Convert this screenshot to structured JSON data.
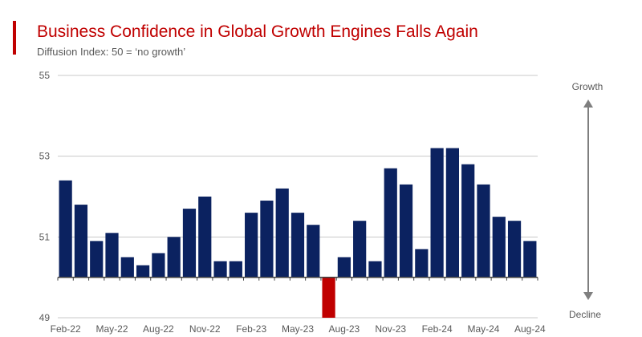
{
  "title": "Business Confidence in Global Growth Engines Falls Again",
  "subtitle": "Diffusion Index: 50 = ‘no growth’",
  "colors": {
    "accent": "#c00000",
    "bar_positive": "#0b2260",
    "bar_negative": "#c00000",
    "grid": "#c8c8c8",
    "arrow": "#7f7f7f"
  },
  "arrow_labels": {
    "up": "Growth",
    "down": "Decline"
  },
  "chart_data": {
    "type": "bar",
    "title": "Business Confidence in Global Growth Engines Falls Again",
    "subtitle": "Diffusion Index: 50 = ‘no growth’",
    "baseline": 50,
    "ylim": [
      49,
      55
    ],
    "yticks": [
      49,
      51,
      53,
      55
    ],
    "grid": true,
    "x_tick_labels": [
      "Feb-22",
      "May-22",
      "Aug-22",
      "Nov-22",
      "Feb-23",
      "May-23",
      "Aug-23",
      "Nov-23",
      "Feb-24",
      "May-24",
      "Aug-24"
    ],
    "categories": [
      "Feb-22",
      "Mar-22",
      "Apr-22",
      "May-22",
      "Jun-22",
      "Jul-22",
      "Aug-22",
      "Sep-22",
      "Oct-22",
      "Nov-22",
      "Dec-22",
      "Jan-23",
      "Feb-23",
      "Mar-23",
      "Apr-23",
      "May-23",
      "Jun-23",
      "Jul-23",
      "Aug-23",
      "Sep-23",
      "Oct-23",
      "Nov-23",
      "Dec-23",
      "Jan-24",
      "Feb-24",
      "Mar-24",
      "Apr-24",
      "May-24",
      "Jun-24",
      "Jul-24",
      "Aug-24"
    ],
    "values": [
      52.4,
      51.8,
      50.9,
      51.1,
      50.5,
      50.3,
      50.6,
      51.0,
      51.7,
      52.0,
      50.4,
      50.4,
      51.6,
      51.9,
      52.2,
      51.6,
      51.3,
      49.0,
      50.5,
      51.4,
      50.4,
      52.7,
      52.3,
      50.7,
      53.2,
      53.2,
      52.8,
      52.3,
      51.5,
      51.4,
      50.9
    ]
  }
}
